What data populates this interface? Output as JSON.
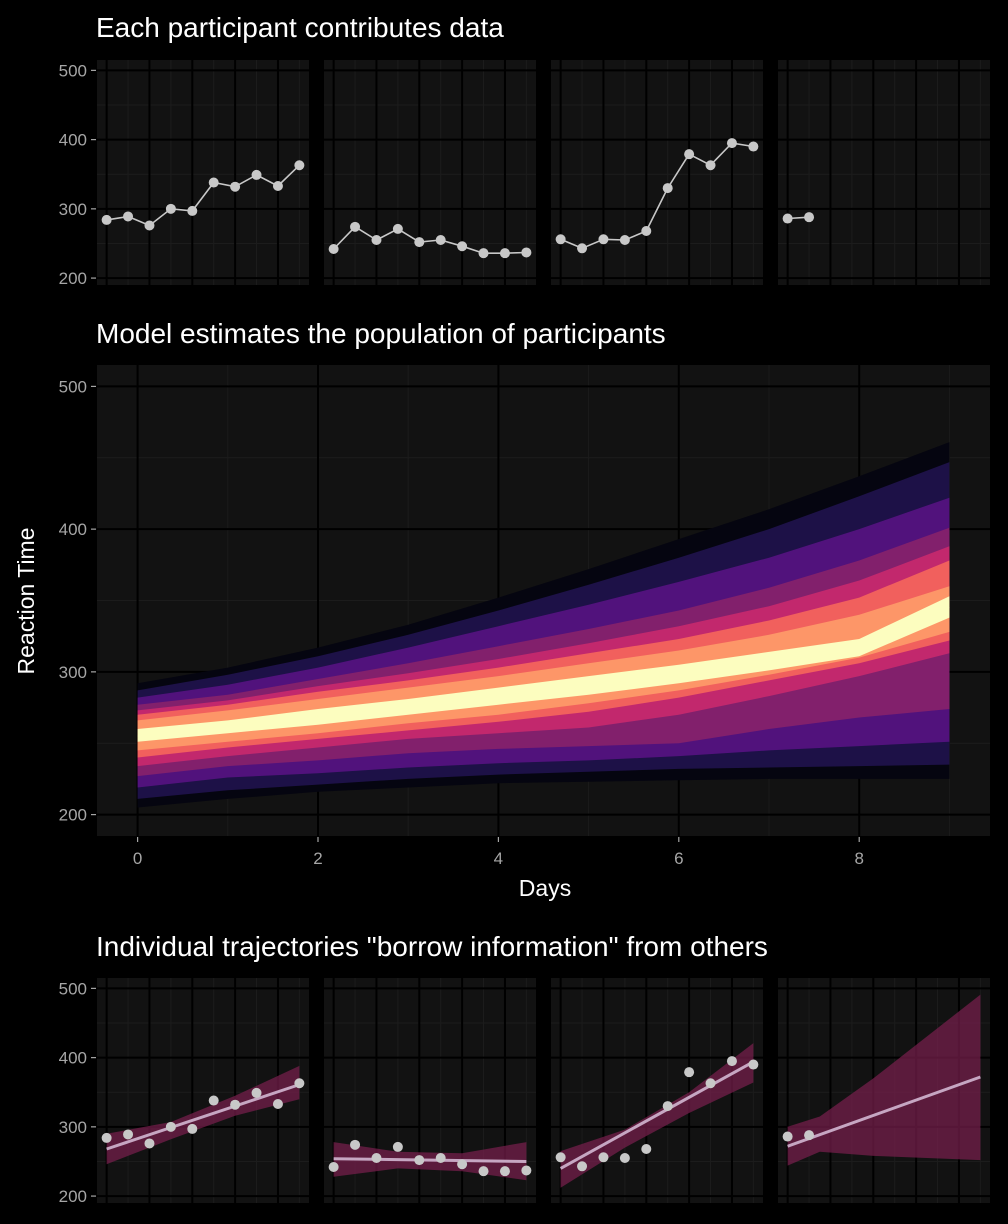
{
  "colors": {
    "background": "#000000",
    "panel": "#121212",
    "grid_major": "#000000",
    "grid_minor": "#1c1c1c",
    "text": "#ffffff",
    "tick_text": "#a6a6a6",
    "point": "#c8c8c8",
    "fit_line": "#c6a6c2",
    "ribbon": "#7b1f4f",
    "ribbon_opacity": 0.7
  },
  "chart_data": [
    {
      "type": "line",
      "title": "Each participant contributes data",
      "xlabel": "",
      "ylabel": "",
      "ylim": [
        190,
        515
      ],
      "xlim": [
        -0.45,
        9.45
      ],
      "yticks": [
        200,
        300,
        400,
        500
      ],
      "facets": [
        {
          "x": [
            0,
            1,
            2,
            3,
            4,
            5,
            6,
            7,
            8,
            9
          ],
          "y": [
            284,
            289,
            276,
            300,
            297,
            338,
            332,
            349,
            333,
            363
          ]
        },
        {
          "x": [
            0,
            1,
            2,
            3,
            4,
            5,
            6,
            7,
            8,
            9
          ],
          "y": [
            242,
            274,
            255,
            271,
            252,
            255,
            246,
            236,
            236,
            237
          ]
        },
        {
          "x": [
            0,
            1,
            2,
            3,
            4,
            5,
            6,
            7,
            8,
            9
          ],
          "y": [
            256,
            243,
            256,
            255,
            268,
            330,
            379,
            363,
            395,
            390
          ]
        },
        {
          "x": [
            0,
            1
          ],
          "y": [
            286,
            288
          ]
        }
      ]
    },
    {
      "type": "area",
      "title": "Model estimates the population of participants",
      "xlabel": "Days",
      "ylabel": "Reaction Time",
      "xlim": [
        -0.45,
        9.45
      ],
      "ylim": [
        185,
        515
      ],
      "xticks": [
        0,
        2,
        4,
        6,
        8
      ],
      "yticks": [
        200,
        300,
        400,
        500
      ],
      "x": [
        0,
        1,
        2,
        3,
        4,
        5,
        6,
        7,
        8,
        9
      ],
      "bands": [
        {
          "level": 0.99,
          "color": "#050510",
          "lower": [
            205,
            211,
            216,
            219,
            222,
            223,
            224,
            225,
            225,
            225
          ],
          "upper": [
            292,
            303,
            317,
            333,
            352,
            372,
            393,
            414,
            437,
            461
          ]
        },
        {
          "level": 0.95,
          "color": "#1d1147",
          "lower": [
            211,
            217,
            221,
            225,
            228,
            230,
            232,
            233,
            234,
            235
          ],
          "upper": [
            287,
            298,
            311,
            326,
            343,
            361,
            380,
            400,
            423,
            447
          ]
        },
        {
          "level": 0.9,
          "color": "#51127c",
          "lower": [
            219,
            226,
            229,
            233,
            236,
            238,
            241,
            245,
            248,
            251
          ],
          "upper": [
            282,
            291,
            303,
            317,
            332,
            347,
            363,
            380,
            400,
            422
          ]
        },
        {
          "level": 0.8,
          "color": "#82206c",
          "lower": [
            227,
            234,
            238,
            243,
            246,
            248,
            250,
            260,
            268,
            274
          ],
          "upper": [
            277,
            284,
            295,
            306,
            318,
            330,
            343,
            359,
            378,
            401
          ]
        },
        {
          "level": 0.7,
          "color": "#c2286d",
          "lower": [
            234,
            241,
            247,
            253,
            257,
            261,
            270,
            283,
            297,
            313
          ],
          "upper": [
            273,
            280,
            290,
            299,
            309,
            320,
            332,
            346,
            364,
            388
          ]
        },
        {
          "level": 0.6,
          "color": "#f1605d",
          "lower": [
            240,
            247,
            253,
            259,
            265,
            272,
            282,
            294,
            306,
            322
          ],
          "upper": [
            270,
            277,
            286,
            294,
            303,
            313,
            323,
            336,
            352,
            378
          ]
        },
        {
          "level": 0.5,
          "color": "#fd9668",
          "lower": [
            245,
            251,
            257,
            264,
            270,
            278,
            287,
            298,
            310,
            328
          ],
          "upper": [
            266,
            273,
            281,
            289,
            297,
            306,
            315,
            326,
            340,
            360
          ]
        },
        {
          "level": 0.25,
          "color": "#fcfdbf",
          "lower": [
            251,
            257,
            263,
            270,
            277,
            284,
            292,
            301,
            311,
            338
          ],
          "upper": [
            260,
            266,
            274,
            281,
            289,
            297,
            305,
            314,
            323,
            353
          ]
        }
      ],
      "median": [
        255,
        262,
        269,
        276,
        283,
        290,
        298,
        306,
        315,
        345
      ]
    },
    {
      "type": "scatter",
      "title": "Individual trajectories \"borrow information\" from others",
      "xlabel": "",
      "ylabel": "",
      "ylim": [
        190,
        515
      ],
      "xlim": [
        -0.45,
        9.45
      ],
      "yticks": [
        200,
        300,
        400,
        500
      ],
      "facets": [
        {
          "points_x": [
            0,
            1,
            2,
            3,
            4,
            5,
            6,
            7,
            8,
            9
          ],
          "points_y": [
            284,
            289,
            276,
            300,
            297,
            338,
            332,
            349,
            333,
            363
          ],
          "fit_x": [
            0,
            9
          ],
          "fit_y": [
            268,
            361
          ],
          "band_x": [
            0,
            3,
            6,
            9
          ],
          "band_low": [
            246,
            282,
            316,
            340
          ],
          "band_high": [
            290,
            307,
            345,
            388
          ]
        },
        {
          "points_x": [
            0,
            1,
            2,
            3,
            4,
            5,
            6,
            7,
            8,
            9
          ],
          "points_y": [
            242,
            274,
            255,
            271,
            252,
            255,
            246,
            236,
            236,
            237
          ],
          "fit_x": [
            0,
            9
          ],
          "fit_y": [
            254,
            250
          ],
          "band_x": [
            0,
            3,
            6,
            9
          ],
          "band_low": [
            228,
            240,
            236,
            223
          ],
          "band_high": [
            278,
            264,
            262,
            278
          ]
        },
        {
          "points_x": [
            0,
            1,
            2,
            3,
            4,
            5,
            6,
            7,
            8,
            9
          ],
          "points_y": [
            256,
            243,
            256,
            255,
            268,
            330,
            379,
            363,
            395,
            390
          ],
          "fit_x": [
            0,
            9
          ],
          "fit_y": [
            240,
            394
          ],
          "band_x": [
            0,
            3,
            6,
            9
          ],
          "band_low": [
            212,
            270,
            320,
            364
          ],
          "band_high": [
            265,
            296,
            350,
            421
          ]
        },
        {
          "points_x": [
            0,
            1
          ],
          "points_y": [
            286,
            288
          ],
          "fit_x": [
            0,
            9
          ],
          "fit_y": [
            272,
            372
          ],
          "band_x": [
            0,
            1.5,
            4,
            9
          ],
          "band_low": [
            244,
            264,
            258,
            252
          ],
          "band_high": [
            300,
            315,
            370,
            491
          ]
        }
      ]
    }
  ]
}
